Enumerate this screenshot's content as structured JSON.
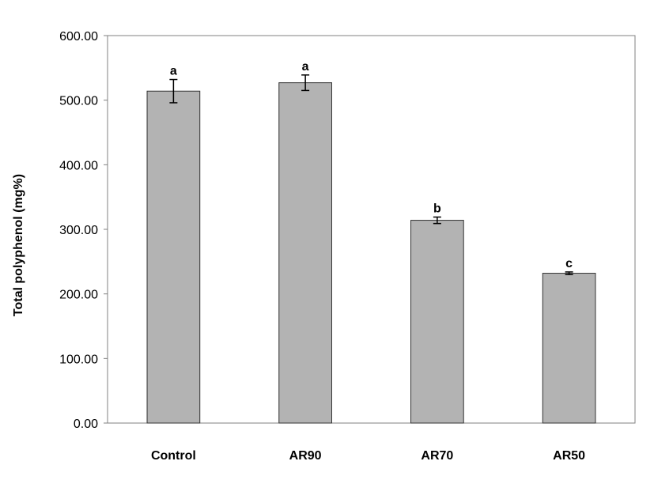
{
  "chart_data": {
    "type": "bar",
    "title": "",
    "xlabel": "",
    "ylabel": "Total polyphenol (mg%)",
    "ylim": [
      0,
      600
    ],
    "yticks": [
      "0.00",
      "100.00",
      "200.00",
      "300.00",
      "400.00",
      "500.00",
      "600.00"
    ],
    "categories": [
      "Control",
      "AR90",
      "AR70",
      "AR50"
    ],
    "values": [
      514,
      527,
      314,
      232
    ],
    "errors": [
      18,
      12,
      5,
      2
    ],
    "significance": [
      "a",
      "a",
      "b",
      "c"
    ],
    "grid": false,
    "legend": "none",
    "bar_color": "#b3b3b3",
    "bar_edge_color": "#333333"
  }
}
